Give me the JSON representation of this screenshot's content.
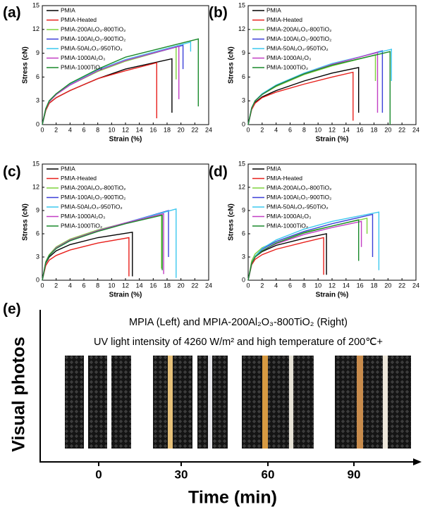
{
  "chart_data": [
    {
      "type": "line",
      "panel": "(a)",
      "xlabel": "Strain (%)",
      "ylabel": "Stress (cN)",
      "xlim": [
        0,
        24
      ],
      "xticks": [
        0,
        2,
        4,
        6,
        8,
        10,
        12,
        14,
        16,
        18,
        20,
        22,
        24
      ],
      "ylim": [
        0,
        15
      ],
      "yticks": [
        0,
        3,
        6,
        9,
        12,
        15
      ],
      "legend": "upper left",
      "series": [
        {
          "name": "PMIA",
          "color": "#000000",
          "x": [
            0,
            0.5,
            1,
            2,
            4,
            8,
            12,
            18.7,
            18.7
          ],
          "values": [
            0,
            1.8,
            2.7,
            3.4,
            4.3,
            5.8,
            7.0,
            8.3,
            1.5
          ]
        },
        {
          "name": "PMIA-Heated",
          "color": "#e8201c",
          "x": [
            0,
            0.5,
            1,
            2,
            4,
            8,
            12,
            16.5,
            16.5
          ],
          "values": [
            0,
            1.8,
            2.7,
            3.4,
            4.3,
            5.8,
            6.8,
            7.8,
            0.8
          ]
        },
        {
          "name": "PMIA-200Al₂O₃-800TiO₂",
          "color": "#7ed33c",
          "x": [
            0,
            0.5,
            1,
            2,
            4,
            8,
            12,
            19.3,
            19.3
          ],
          "values": [
            0,
            2.0,
            2.9,
            3.8,
            5.0,
            6.7,
            8.0,
            9.8,
            5.7
          ]
        },
        {
          "name": "PMIA-100Al₂O₃-900TiO₂",
          "color": "#3b3fd8",
          "x": [
            0,
            0.5,
            1,
            2,
            4,
            8,
            12,
            20.3,
            20.3
          ],
          "values": [
            0,
            2.0,
            2.9,
            3.8,
            5.0,
            6.8,
            8.1,
            10.0,
            7.0
          ]
        },
        {
          "name": "PMIA-50Al₂O₃-950TiO₂",
          "color": "#3cc8ef",
          "x": [
            0,
            0.5,
            1,
            2,
            4,
            8,
            12,
            21.4,
            21.4
          ],
          "values": [
            0,
            2.0,
            3.0,
            3.9,
            5.1,
            6.9,
            8.2,
            10.4,
            9.2
          ]
        },
        {
          "name": "PMIA-1000Al₂O₃",
          "color": "#c23fc4",
          "x": [
            0,
            0.5,
            1,
            2,
            4,
            8,
            12,
            19.7,
            19.7
          ],
          "values": [
            0,
            2.0,
            2.9,
            3.8,
            5.0,
            6.8,
            8.1,
            9.9,
            3.2
          ]
        },
        {
          "name": "PMIA-1000TiO₂",
          "color": "#1a8a2c",
          "x": [
            0,
            0.5,
            1,
            2,
            4,
            8,
            12,
            22.5,
            22.5
          ],
          "values": [
            0,
            2.0,
            3.0,
            3.9,
            5.2,
            7.0,
            8.5,
            10.8,
            2.3
          ]
        }
      ]
    },
    {
      "type": "line",
      "panel": "(b)",
      "xlabel": "Strain (%)",
      "ylabel": "Stress (cN)",
      "xlim": [
        0,
        24
      ],
      "xticks": [
        0,
        2,
        4,
        6,
        8,
        10,
        12,
        14,
        16,
        18,
        20,
        22,
        24
      ],
      "ylim": [
        0,
        15
      ],
      "yticks": [
        0,
        3,
        6,
        9,
        12,
        15
      ],
      "legend": "upper left",
      "series": [
        {
          "name": "PMIA",
          "color": "#000000",
          "x": [
            0,
            0.5,
            1,
            2,
            4,
            8,
            12,
            15.8,
            15.8
          ],
          "values": [
            0,
            2.0,
            2.8,
            3.5,
            4.3,
            5.5,
            6.5,
            7.2,
            1.5
          ]
        },
        {
          "name": "PMIA-Heated",
          "color": "#e8201c",
          "x": [
            0,
            0.5,
            1,
            2,
            4,
            8,
            12,
            15.0,
            15.0
          ],
          "values": [
            0,
            1.9,
            2.7,
            3.4,
            4.1,
            5.1,
            6.0,
            6.6,
            0.5
          ]
        },
        {
          "name": "PMIA-200Al₂O₃-800TiO₂",
          "color": "#7ed33c",
          "x": [
            0,
            0.5,
            1,
            2,
            4,
            8,
            12,
            18.2,
            18.2
          ],
          "values": [
            0,
            2.1,
            3.0,
            3.8,
            4.8,
            6.3,
            7.4,
            8.8,
            5.5
          ]
        },
        {
          "name": "PMIA-100Al₂O₃-900TiO₂",
          "color": "#3b3fd8",
          "x": [
            0,
            0.5,
            1,
            2,
            4,
            8,
            12,
            19.2,
            19.2
          ],
          "values": [
            0,
            2.1,
            3.0,
            3.8,
            4.9,
            6.4,
            7.6,
            9.3,
            1.5
          ]
        },
        {
          "name": "PMIA-50Al₂O₃-950TiO₂",
          "color": "#3cc8ef",
          "x": [
            0,
            0.5,
            1,
            2,
            4,
            8,
            12,
            20.5,
            20.5
          ],
          "values": [
            0,
            2.1,
            3.0,
            3.9,
            5.0,
            6.5,
            7.7,
            9.5,
            5.5
          ]
        },
        {
          "name": "PMIA-1000Al₂O₃",
          "color": "#c23fc4",
          "x": [
            0,
            0.5,
            1,
            2,
            4,
            8,
            12,
            18.5,
            18.5
          ],
          "values": [
            0,
            2.1,
            3.0,
            3.8,
            4.9,
            6.4,
            7.6,
            9.1,
            1.5
          ]
        },
        {
          "name": "PMIA-1000TiO₂",
          "color": "#1a8a2c",
          "x": [
            0,
            0.5,
            1,
            2,
            4,
            8,
            12,
            20.3,
            20.3
          ],
          "values": [
            0,
            2.1,
            3.0,
            3.8,
            4.9,
            6.4,
            7.5,
            9.2,
            0
          ]
        }
      ]
    },
    {
      "type": "line",
      "panel": "(c)",
      "xlabel": "Strain (%)",
      "ylabel": "Stress (cN)",
      "xlim": [
        0,
        24
      ],
      "xticks": [
        0,
        2,
        4,
        6,
        8,
        10,
        12,
        14,
        16,
        18,
        20,
        22,
        24
      ],
      "ylim": [
        0,
        15
      ],
      "yticks": [
        0,
        3,
        6,
        9,
        12,
        15
      ],
      "legend": "upper left",
      "series": [
        {
          "name": "PMIA",
          "color": "#000000",
          "x": [
            0,
            0.5,
            1,
            2,
            4,
            8,
            13.0,
            13.0
          ],
          "values": [
            0,
            2.2,
            3.0,
            3.8,
            4.6,
            5.5,
            6.2,
            0.5
          ]
        },
        {
          "name": "PMIA-Heated",
          "color": "#e8201c",
          "x": [
            0,
            0.5,
            1,
            2,
            4,
            8,
            12.5,
            12.5
          ],
          "values": [
            0,
            1.9,
            2.6,
            3.2,
            3.9,
            4.8,
            5.5,
            0.5
          ]
        },
        {
          "name": "PMIA-200Al₂O₃-800TiO₂",
          "color": "#7ed33c",
          "x": [
            0,
            0.5,
            1,
            2,
            4,
            8,
            12,
            17.2,
            17.2
          ],
          "values": [
            0,
            2.4,
            3.3,
            4.3,
            5.3,
            6.5,
            7.4,
            8.5,
            1.5
          ]
        },
        {
          "name": "PMIA-100Al₂O₃-900TiO₂",
          "color": "#3b3fd8",
          "x": [
            0,
            0.5,
            1,
            2,
            4,
            8,
            12,
            18.2,
            18.2
          ],
          "values": [
            0,
            2.3,
            3.2,
            4.1,
            5.1,
            6.4,
            7.4,
            9.0,
            3.0
          ]
        },
        {
          "name": "PMIA-50Al₂O₃-950TiO₂",
          "color": "#3cc8ef",
          "x": [
            0,
            0.5,
            1,
            2,
            4,
            8,
            12,
            19.3,
            19.3
          ],
          "values": [
            0,
            2.3,
            3.2,
            4.1,
            5.1,
            6.4,
            7.4,
            9.2,
            0.3
          ]
        },
        {
          "name": "PMIA-1000Al₂O₃",
          "color": "#c23fc4",
          "x": [
            0,
            0.5,
            1,
            2,
            4,
            8,
            12,
            17.5,
            17.5
          ],
          "values": [
            0,
            2.3,
            3.2,
            4.2,
            5.2,
            6.4,
            7.4,
            8.6,
            0.8
          ]
        },
        {
          "name": "PMIA-1000TiO₂",
          "color": "#1a8a2c",
          "x": [
            0,
            0.5,
            1,
            2,
            4,
            8,
            12,
            17.3,
            17.3
          ],
          "values": [
            0,
            2.3,
            3.2,
            4.1,
            5.1,
            6.3,
            7.3,
            8.4,
            1.3
          ]
        }
      ]
    },
    {
      "type": "line",
      "panel": "(d)",
      "xlabel": "Strain (%)",
      "ylabel": "Stress (cN)",
      "xlim": [
        0,
        24
      ],
      "xticks": [
        0,
        2,
        4,
        6,
        8,
        10,
        12,
        14,
        16,
        18,
        20,
        22,
        24
      ],
      "ylim": [
        0,
        15
      ],
      "yticks": [
        0,
        3,
        6,
        9,
        12,
        15
      ],
      "legend": "upper left",
      "series": [
        {
          "name": "PMIA",
          "color": "#000000",
          "x": [
            0,
            0.5,
            1,
            2,
            4,
            8,
            11.2,
            11.2
          ],
          "values": [
            0,
            2.2,
            3.0,
            3.7,
            4.5,
            5.4,
            6.0,
            0.7
          ]
        },
        {
          "name": "PMIA-Heated",
          "color": "#e8201c",
          "x": [
            0,
            0.5,
            1,
            2,
            4,
            8,
            10.8,
            10.8
          ],
          "values": [
            0,
            2.0,
            2.7,
            3.3,
            4.0,
            4.9,
            5.5,
            0.7
          ]
        },
        {
          "name": "PMIA-200Al₂O₃-800TiO₂",
          "color": "#7ed33c",
          "x": [
            0,
            0.5,
            1,
            2,
            4,
            8,
            12,
            17.0,
            17.0
          ],
          "values": [
            0,
            2.5,
            3.4,
            4.2,
            5.0,
            6.2,
            7.0,
            8.0,
            6.0
          ]
        },
        {
          "name": "PMIA-100Al₂O₃-900TiO₂",
          "color": "#3b3fd8",
          "x": [
            0,
            0.5,
            1,
            2,
            4,
            8,
            12,
            17.8,
            17.8
          ],
          "values": [
            0,
            2.2,
            3.1,
            4.0,
            5.0,
            6.3,
            7.3,
            8.5,
            3.0
          ]
        },
        {
          "name": "PMIA-50Al₂O₃-950TiO₂",
          "color": "#3cc8ef",
          "x": [
            0,
            0.5,
            1,
            2,
            4,
            8,
            12,
            18.7,
            18.7
          ],
          "values": [
            0,
            2.2,
            3.1,
            4.1,
            5.2,
            6.6,
            7.6,
            8.8,
            1.3
          ]
        },
        {
          "name": "PMIA-1000Al₂O₃",
          "color": "#c23fc4",
          "x": [
            0,
            0.5,
            1,
            2,
            4,
            8,
            12,
            16.2,
            16.2
          ],
          "values": [
            0,
            2.2,
            3.0,
            3.8,
            4.7,
            5.9,
            6.8,
            7.6,
            4.3
          ]
        },
        {
          "name": "PMIA-1000TiO₂",
          "color": "#1a8a2c",
          "x": [
            0,
            0.5,
            1,
            2,
            4,
            8,
            12,
            15.8,
            15.8
          ],
          "values": [
            0,
            2.2,
            3.0,
            3.8,
            4.8,
            6.1,
            7.0,
            7.8,
            2.5
          ]
        }
      ]
    }
  ],
  "photo_panel": {
    "panel": "(e)",
    "ylabel": "Visual photos",
    "title": "MPIA (Left) and MPIA-200Al₂O₃-800TiO₂ (Right)",
    "subtitle": "UV light intensity of 4260 W/m² and high temperature of 200℃+",
    "categories": [
      "0",
      "30",
      "60",
      "90"
    ],
    "xlabel": "Time (min)"
  }
}
